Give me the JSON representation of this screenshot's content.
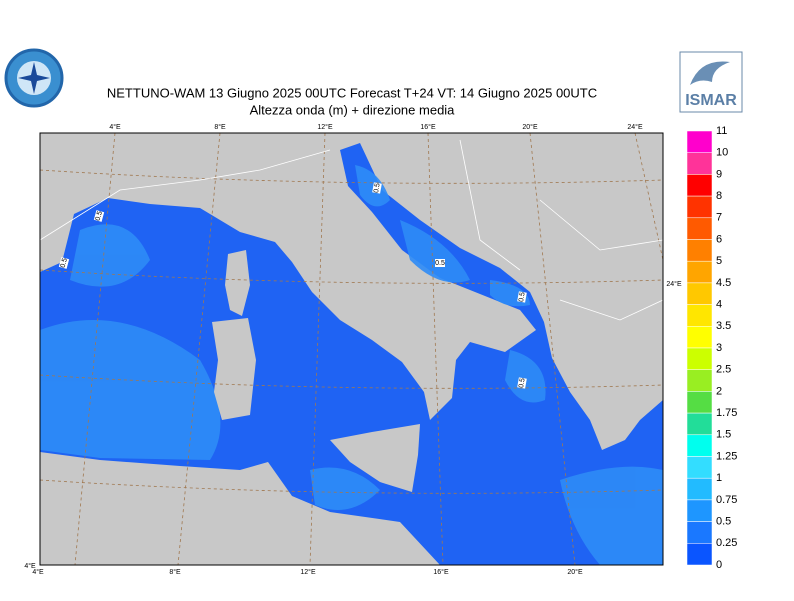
{
  "header": {
    "title": "NETTUNO-WAM  13   Giugno  2025 00UTC Forecast T+24 VT: 14   Giugno  2025 00UTC",
    "subtitle": "Altezza onda (m) + direzione media",
    "logo_right": "ISMAR"
  },
  "map": {
    "top_ticks": [
      "4°E",
      "8°E",
      "12°E",
      "16°E",
      "20°E",
      "24°E"
    ],
    "bottom_ticks": [
      "4°E",
      "8°E",
      "12°E",
      "16°E",
      "20°E"
    ],
    "corner_label": "4°E",
    "right_label": "24°E",
    "contour_labels": [
      "0.5",
      "0.5",
      "0.5",
      "0.5",
      "0.5",
      "0.5"
    ]
  },
  "colorbar": {
    "labels": [
      "11",
      "10",
      "9",
      "8",
      "7",
      "6",
      "5",
      "4.5",
      "4",
      "3.5",
      "3",
      "2.5",
      "2",
      "1.75",
      "1.5",
      "1.25",
      "1",
      "0.75",
      "0.5",
      "0.25",
      "0"
    ],
    "colors": [
      "#ff00cc",
      "#ff3399",
      "#ff0000",
      "#ff3300",
      "#ff5a00",
      "#ff8000",
      "#ffa500",
      "#ffc800",
      "#ffe600",
      "#ffff00",
      "#ccff00",
      "#99ee22",
      "#55dd44",
      "#22dd99",
      "#00ffee",
      "#33ddff",
      "#22bbff",
      "#1e96ff",
      "#1a78ff",
      "#0a55ff"
    ]
  }
}
